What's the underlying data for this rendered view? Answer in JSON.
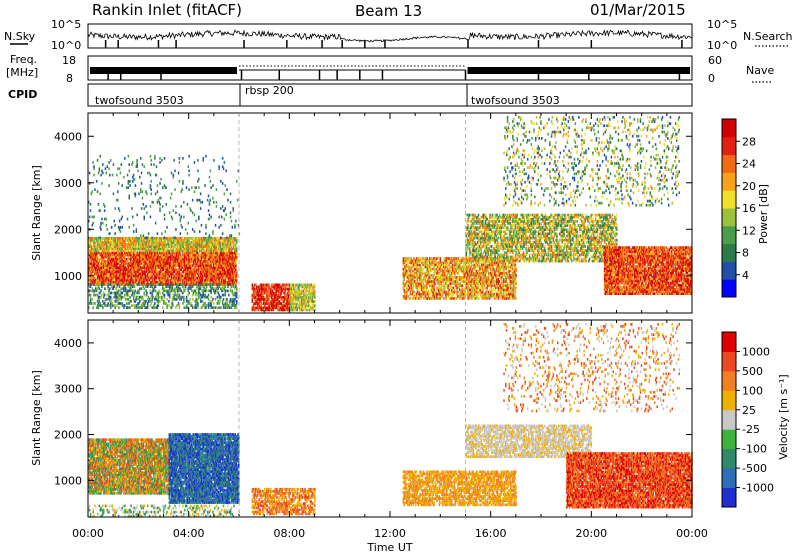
{
  "header": {
    "station": "Rankin Inlet (fitACF)",
    "beam": "Beam 13",
    "date": "01/Mar/2015"
  },
  "labels": {
    "nsky": "N.Sky",
    "freq_top": "Freq.",
    "freq_unit": "[MHz]",
    "cpid": "CPID",
    "nsearch": "N.Search",
    "nave": "Nave",
    "time_axis": "Time UT"
  },
  "chart_data": [
    {
      "type": "line",
      "name": "noise-panel",
      "left_ylabel": "N.Sky",
      "right_ylabel": "N.Search",
      "left_ticks": [
        "10^5",
        "10^0"
      ],
      "right_ticks": [
        "10^5",
        "10^0"
      ],
      "notes": "noisy sky-noise trace across full day, dropouts at scan boundaries"
    },
    {
      "type": "line",
      "name": "freq-panel",
      "left_ylabel": "Freq. [MHz]",
      "right_ylabel": "Nave",
      "left_ticks": [
        "18",
        "8"
      ],
      "right_ticks": [
        "60",
        "0"
      ],
      "dotted_segment_hours": [
        6.0,
        15.0
      ]
    },
    {
      "type": "table",
      "name": "cpid-panel",
      "segments": [
        {
          "label": "twofsound 3503",
          "start_hour": 0.0,
          "end_hour": 6.0
        },
        {
          "label": "rbsp 200",
          "start_hour": 6.0,
          "end_hour": 15.0
        },
        {
          "label": "twofsound 3503",
          "start_hour": 15.0,
          "end_hour": 24.0
        }
      ]
    },
    {
      "type": "heatmap",
      "name": "power",
      "ylabel": "Slant Range [km]",
      "xlabel": "Time UT",
      "xlim": [
        0,
        24
      ],
      "ylim": [
        200,
        4500
      ],
      "x_ticks": [
        "00:00",
        "04:00",
        "08:00",
        "12:00",
        "16:00",
        "20:00",
        "00:00"
      ],
      "y_ticks": [
        1000,
        2000,
        3000,
        4000
      ],
      "colorbar": {
        "label": "Power [dB]",
        "ticks": [
          28,
          24,
          20,
          16,
          12,
          8,
          4
        ],
        "colors": [
          "#0000ff",
          "#1f4fa8",
          "#2c7a4a",
          "#4a9d4a",
          "#9bc23a",
          "#f0e02a",
          "#f7a21c",
          "#f06b12",
          "#e02010",
          "#d00000"
        ]
      }
    },
    {
      "type": "heatmap",
      "name": "velocity",
      "ylabel": "Slant Range [km]",
      "xlabel": "Time UT",
      "xlim": [
        0,
        24
      ],
      "ylim": [
        200,
        4500
      ],
      "x_ticks": [
        "00:00",
        "04:00",
        "08:00",
        "12:00",
        "16:00",
        "20:00",
        "00:00"
      ],
      "y_ticks": [
        1000,
        2000,
        3000,
        4000
      ],
      "colorbar": {
        "label": "Velocity [m s⁻¹]",
        "ticks": [
          "1000",
          "500",
          "100",
          "25",
          "-25",
          "-100",
          "-500",
          "-1000"
        ],
        "colors": [
          "#1f2ecf",
          "#2e6db8",
          "#2f8a6a",
          "#3cb43c",
          "#c8c8c8",
          "#f0b000",
          "#f08020",
          "#e94820",
          "#e00000"
        ]
      }
    }
  ]
}
